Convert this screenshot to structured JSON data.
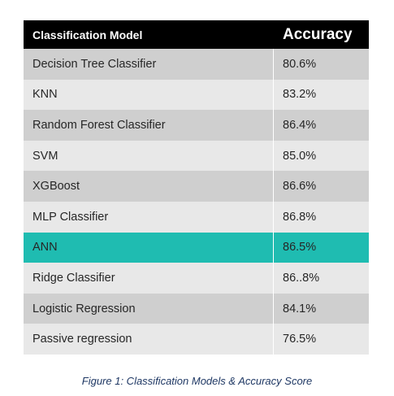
{
  "table": {
    "header": {
      "model": "Classification Model",
      "accuracy": "Accuracy"
    },
    "rows": [
      {
        "model": "Decision Tree Classifier",
        "accuracy": "80.6%"
      },
      {
        "model": "KNN",
        "accuracy": "83.2%"
      },
      {
        "model": "Random Forest Classifier",
        "accuracy": "86.4%"
      },
      {
        "model": "SVM",
        "accuracy": "85.0%"
      },
      {
        "model": "XGBoost",
        "accuracy": "86.6%"
      },
      {
        "model": "MLP Classifier",
        "accuracy": "86.8%"
      },
      {
        "model": "ANN",
        "accuracy": "86.5%"
      },
      {
        "model": "Ridge Classifier",
        "accuracy": "86..8%"
      },
      {
        "model": "Logistic Regression",
        "accuracy": "84.1%"
      },
      {
        "model": "Passive regression",
        "accuracy": "76.5%"
      }
    ],
    "highlighted_row": "ANN",
    "colors": {
      "header_bg": "#000000",
      "dark_row": "#cfcfcf",
      "light_row": "#e8e8e8",
      "highlight": "#1fbcb1"
    }
  },
  "caption": "Figure 1: Classification Models & Accuracy Score"
}
